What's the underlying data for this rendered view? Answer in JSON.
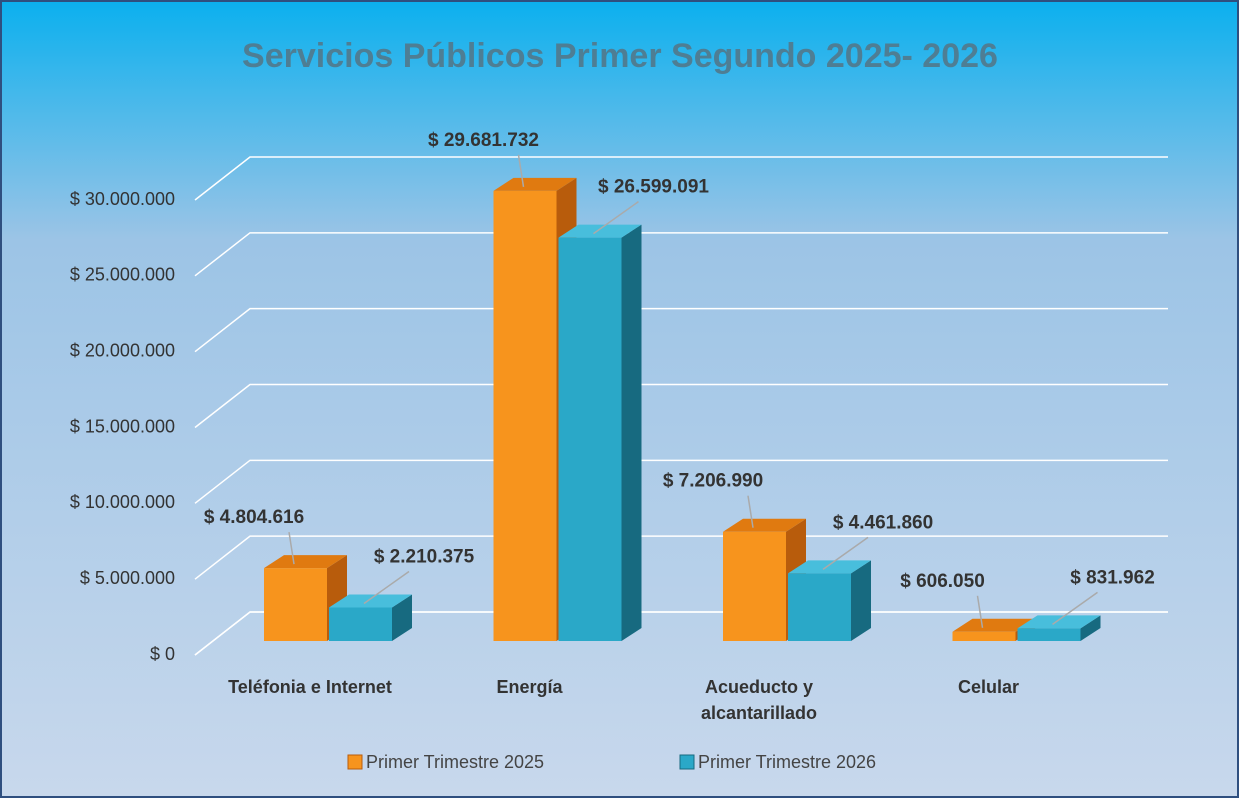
{
  "chart_data": {
    "type": "bar3d",
    "title": "Servicios Públicos Primer Segundo 2025- 2026",
    "categories": [
      "Teléfonia e Internet",
      "Energía",
      "Acueducto y alcantarillado",
      "Celular"
    ],
    "series": [
      {
        "name": "Primer Trimestre 2025",
        "color": "#f7941d",
        "values": [
          4804616,
          29681732,
          7206990,
          606050
        ],
        "value_labels": [
          "$ 4.804.616",
          "$ 29.681.732",
          "$ 7.206.990",
          "$ 606.050"
        ]
      },
      {
        "name": "Primer Trimestre 2026",
        "color": "#2aa8c8",
        "values": [
          2210375,
          26599091,
          4461860,
          831962
        ],
        "value_labels": [
          "$ 2.210.375",
          "$ 26.599.091",
          "$ 4.461.860",
          "$ 831.962"
        ]
      }
    ],
    "ylim": [
      0,
      30000000
    ],
    "yticks": [
      {
        "value": 0,
        "label": "$ 0"
      },
      {
        "value": 5000000,
        "label": "$ 5.000.000"
      },
      {
        "value": 10000000,
        "label": "$ 10.000.000"
      },
      {
        "value": 15000000,
        "label": "$ 15.000.000"
      },
      {
        "value": 20000000,
        "label": "$ 20.000.000"
      },
      {
        "value": 25000000,
        "label": "$ 25.000.000"
      },
      {
        "value": 30000000,
        "label": "$ 30.000.000"
      }
    ],
    "grid": true
  }
}
